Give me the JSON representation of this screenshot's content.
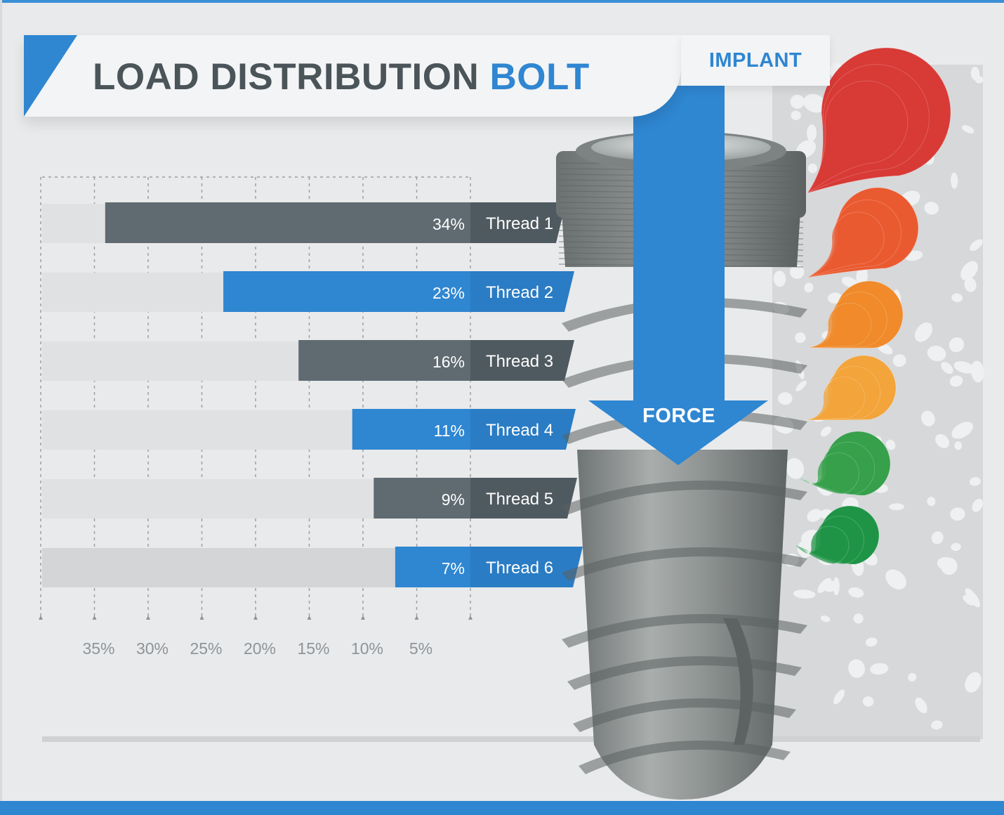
{
  "header": {
    "title_main": "LOAD DISTRIBUTION",
    "title_accent": "BOLT",
    "implant_label": "IMPLANT"
  },
  "force_label": "FORCE",
  "colors": {
    "accent_blue": "#2f86d1",
    "dark_gray": "#5f6b71",
    "stress_scale": [
      "#d83a36",
      "#ea5a30",
      "#f08a2a",
      "#f3a43a",
      "#36a04a",
      "#1f9446"
    ]
  },
  "chart_data": {
    "type": "bar",
    "orientation": "horizontal",
    "x_direction": "right-to-left",
    "categories": [
      "Thread 1",
      "Thread 2",
      "Thread 3",
      "Thread 4",
      "Thread 5",
      "Thread 6"
    ],
    "values": [
      34,
      23,
      16,
      11,
      9,
      7
    ],
    "value_labels": [
      "34%",
      "23%",
      "16%",
      "11%",
      "9%",
      "7%"
    ],
    "x_ticks": [
      35,
      30,
      25,
      20,
      15,
      10,
      5
    ],
    "x_tick_labels": [
      "35%",
      "30%",
      "25%",
      "20%",
      "15%",
      "10%",
      "5%"
    ],
    "xlim": [
      0,
      40
    ],
    "grid": true
  }
}
